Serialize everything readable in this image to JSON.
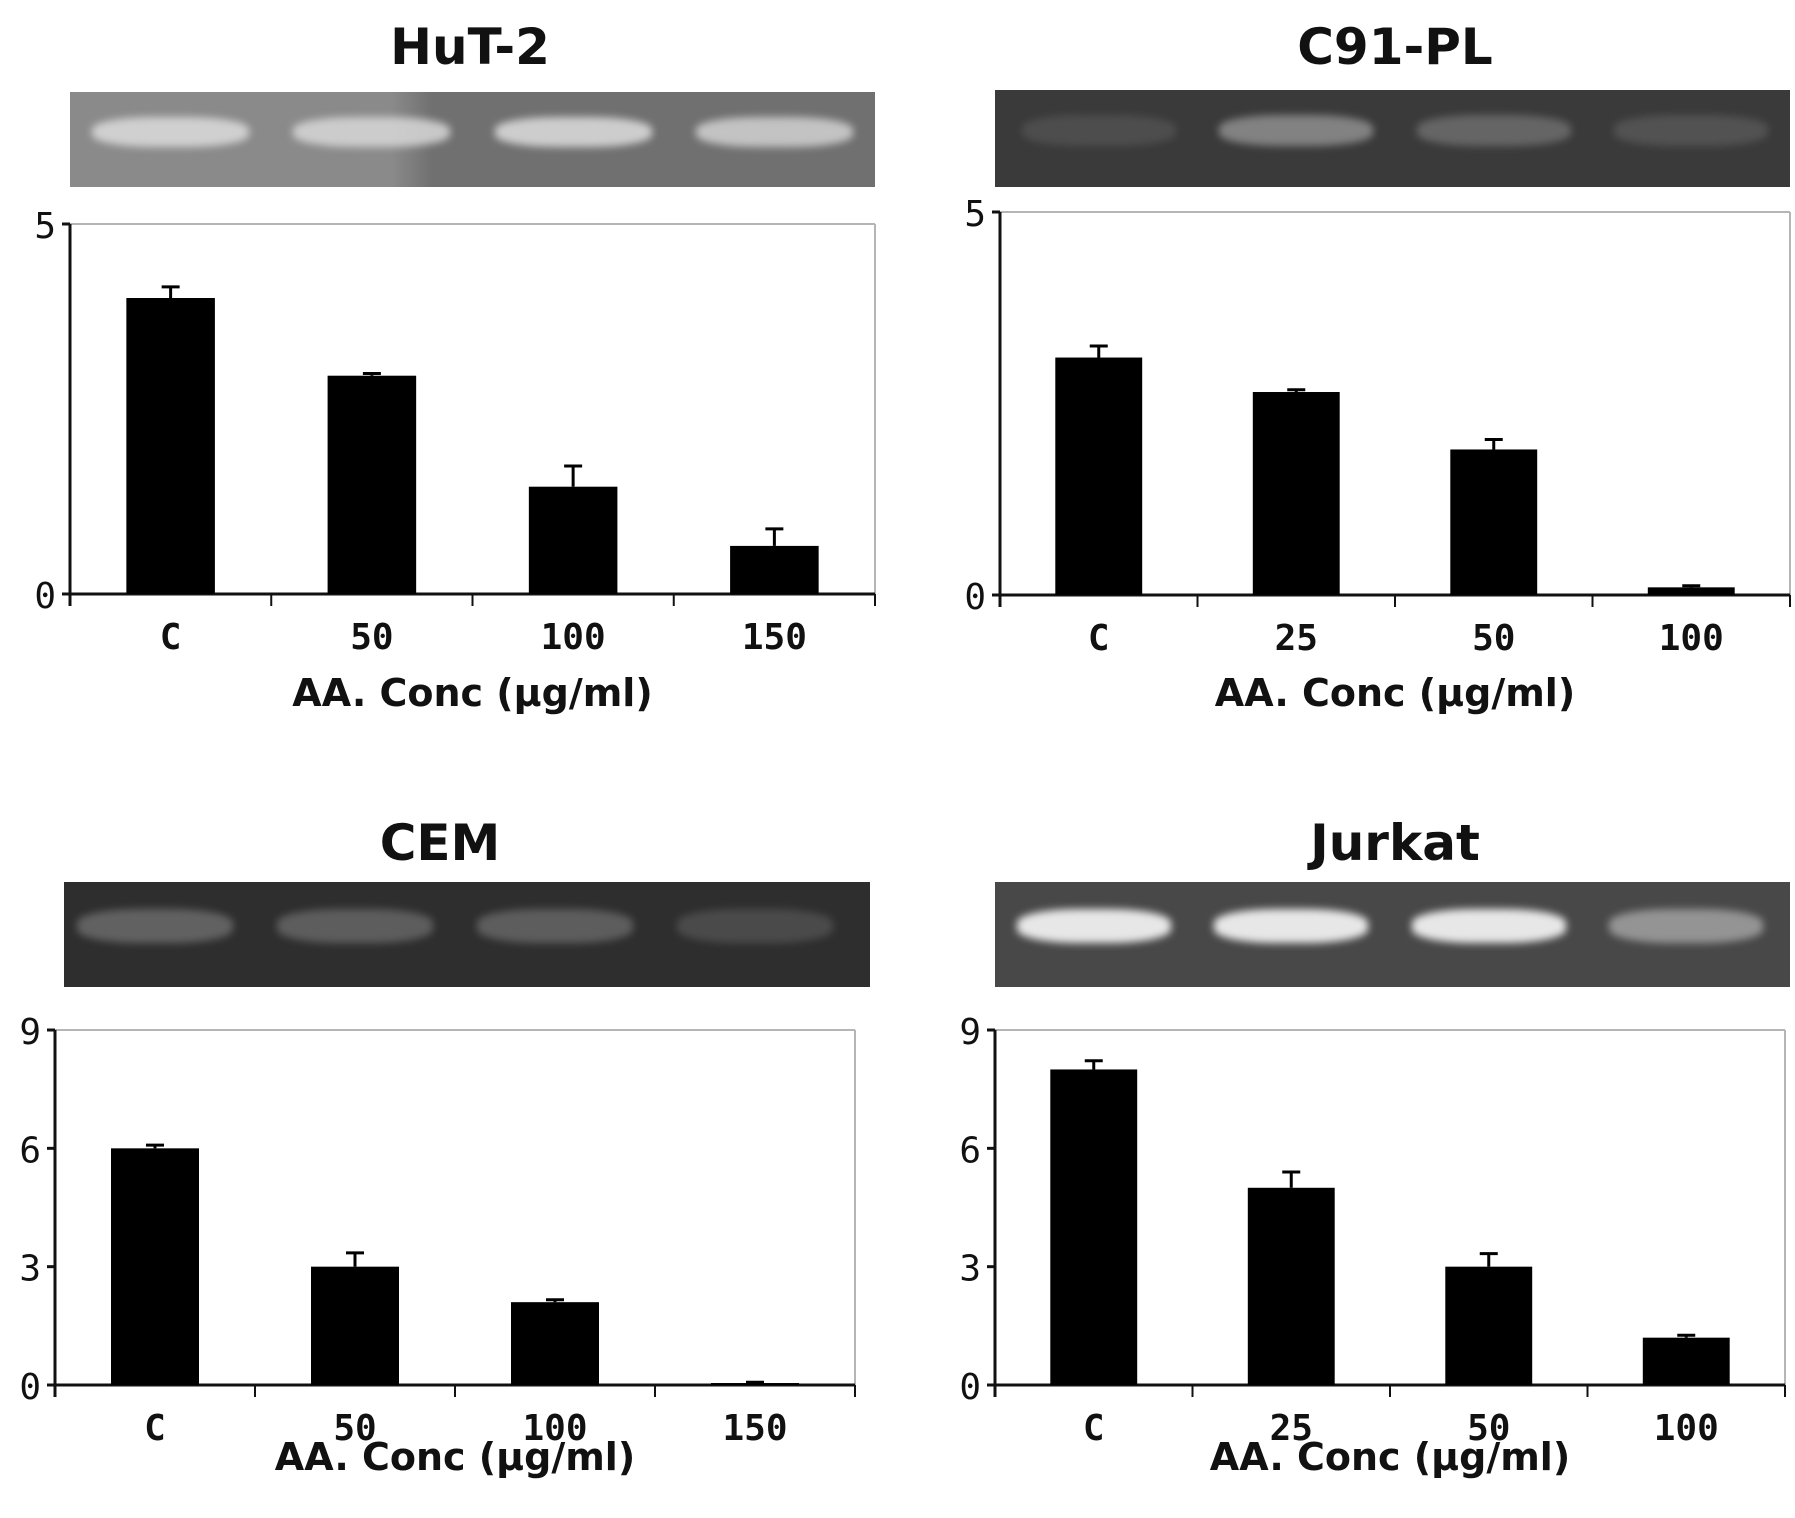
{
  "chart_data": [
    {
      "type": "bar",
      "title": "HuT-2",
      "categories": [
        "C",
        "50",
        "100",
        "150"
      ],
      "values": [
        4.0,
        2.95,
        1.45,
        0.65
      ],
      "errors": [
        0.15,
        0.03,
        0.28,
        0.23
      ],
      "xlabel": "AA. Conc (μg/ml)",
      "ylabel": "",
      "ylim": [
        0,
        5
      ],
      "yticks": [
        "0",
        "5"
      ],
      "grid": false,
      "gel": {
        "background": "#707070",
        "left_background": "#8a8a8a",
        "band_color": "#d8d8d8",
        "band_intensity": [
          0.9,
          0.85,
          0.9,
          0.8
        ]
      }
    },
    {
      "type": "bar",
      "title": "C91-PL",
      "categories": [
        "C",
        "25",
        "50",
        "100"
      ],
      "values": [
        3.1,
        2.65,
        1.9,
        0.1
      ],
      "errors": [
        0.15,
        0.03,
        0.13,
        0.02
      ],
      "xlabel": "AA. Conc (μg/ml)",
      "ylabel": "",
      "ylim": [
        0,
        5
      ],
      "yticks": [
        "0",
        "5"
      ],
      "grid": false,
      "gel": {
        "background": "#3a3a3a",
        "left_background": "#3a3a3a",
        "band_color": "#9a9a9a",
        "band_intensity": [
          0.2,
          0.75,
          0.45,
          0.25
        ]
      }
    },
    {
      "type": "bar",
      "title": "CEM",
      "categories": [
        "C",
        "50",
        "100",
        "150"
      ],
      "values": [
        6.0,
        3.0,
        2.1,
        0.05
      ],
      "errors": [
        0.08,
        0.35,
        0.06,
        0.02
      ],
      "xlabel": "AA. Conc (μg/ml)",
      "ylabel": "",
      "ylim": [
        0,
        9
      ],
      "yticks": [
        "0",
        "3",
        "6",
        "9"
      ],
      "grid": false,
      "gel": {
        "background": "#2e2e2e",
        "left_background": "#2e2e2e",
        "band_color": "#8c8c8c",
        "band_intensity": [
          0.55,
          0.5,
          0.5,
          0.3
        ]
      }
    },
    {
      "type": "bar",
      "title": "Jurkat",
      "categories": [
        "C",
        "25",
        "50",
        "100"
      ],
      "values": [
        8.0,
        5.0,
        3.0,
        1.2
      ],
      "errors": [
        0.22,
        0.4,
        0.33,
        0.06
      ],
      "xlabel": "AA. Conc (μg/ml)",
      "ylabel": "",
      "ylim": [
        0,
        9
      ],
      "yticks": [
        "0",
        "3",
        "6",
        "9"
      ],
      "grid": false,
      "gel": {
        "background": "#484848",
        "left_background": "#484848",
        "band_color": "#f0f0f0",
        "band_intensity": [
          0.95,
          0.95,
          0.95,
          0.45
        ]
      }
    }
  ]
}
